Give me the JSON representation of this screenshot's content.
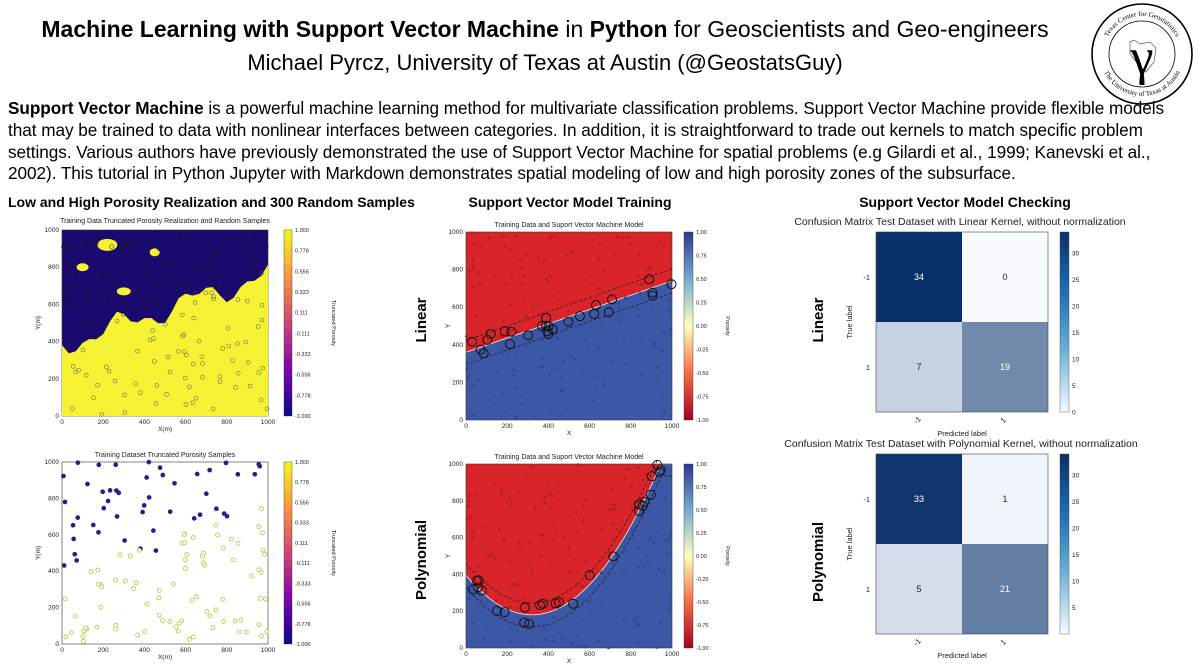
{
  "header": {
    "title_bold_1": "Machine Learning with Support Vector Machine",
    "title_mid": " in ",
    "title_bold_2": "Python",
    "title_tail": "  for Geoscientists and Geo-engineers",
    "author": "Michael Pyrcz, University of Texas at Austin (@GeostatsGuy)",
    "logo_text_top": "Texas Center for Geostatistics",
    "logo_text_bottom": "The University of Texas at Austin",
    "logo_symbol": "γ"
  },
  "intro": {
    "lead": "Support Vector Machine",
    "body": " is a powerful machine learning method for multivariate classification problems.  Support Vector Machine provide flexible models that may be trained to data with nonlinear interfaces between categories.  In addition, it is straightforward to trade out kernels to match specific problem settings.  Various authors have previously demonstrated the use of Support Vector Machine for spatial problems (e.g Gilardi et al., 1999; Kanevski et al., 2002).  This tutorial in Python Jupyter with Markdown demonstrates spatial modeling of low and high porosity zones of the subsurface."
  },
  "columns": {
    "left": "Low and High Porosity Realization and 300 Random Samples",
    "middle": "Support Vector Model Training",
    "right": "Support Vector Model Checking"
  },
  "rows": {
    "linear": "Linear",
    "polynomial": "Polynomial"
  },
  "left_plots": {
    "top_title": "Training Data Truncated Porosity Realization and Random Samples",
    "bottom_title": "Training Dataset Truncated Porosity Samples",
    "xlabel": "X(m)",
    "ylabel": "Y(m)",
    "cbar_label": "Truncated Porosity",
    "xticks": [
      "0",
      "200",
      "400",
      "600",
      "800",
      "1000"
    ],
    "yticks": [
      "1000",
      "800",
      "600",
      "400",
      "200",
      "0"
    ],
    "cbar_ticks": [
      "1.000",
      "0.778",
      "0.556",
      "0.333",
      "0.111",
      "-0.111",
      "-0.333",
      "-0.556",
      "-0.778",
      "-1.000"
    ]
  },
  "middle_plots": {
    "title": "Training Data and Suport Vector Machine Model",
    "xlabel": "X",
    "ylabel": "Y",
    "cbar_label": "Porosity",
    "xticks": [
      "0",
      "200",
      "400",
      "600",
      "800",
      "1000"
    ],
    "yticks": [
      "1000",
      "800",
      "600",
      "400",
      "200",
      "0"
    ],
    "cbar_ticks": [
      "1.00",
      "0.75",
      "0.50",
      "0.25",
      "0.00",
      "-0.25",
      "-0.50",
      "-0.75",
      "-1.00"
    ]
  },
  "confusion": {
    "linear": {
      "title": "Confusion Matrix Test Dataset with Linear Kernel, without normalization",
      "values": [
        [
          "34",
          "0"
        ],
        [
          "7",
          "19"
        ]
      ],
      "cbar_ticks": [
        "30",
        "25",
        "20",
        "15",
        "10",
        "5",
        "0"
      ]
    },
    "polynomial": {
      "title": "Confusion Matrix Test Dataset with Polynomial Kernel, without normalization",
      "values": [
        [
          "33",
          "1"
        ],
        [
          "5",
          "21"
        ]
      ],
      "cbar_ticks": [
        "30",
        "25",
        "20",
        "15",
        "10",
        "5"
      ]
    },
    "row_labels": [
      "-1",
      "1"
    ],
    "col_labels": [
      "-1",
      "1"
    ],
    "ylabel": "True label",
    "xlabel": "Predicted label"
  },
  "colors": {
    "yellow": "#f5f233",
    "navy": "#1a0a6e",
    "red": "#d9252a",
    "blue": "#3b57a6",
    "cm_dark": "#08306b",
    "cm_light": "#dbe9f6",
    "cm_mid": "#4f9bcb",
    "cm_white": "#f7fbff"
  }
}
